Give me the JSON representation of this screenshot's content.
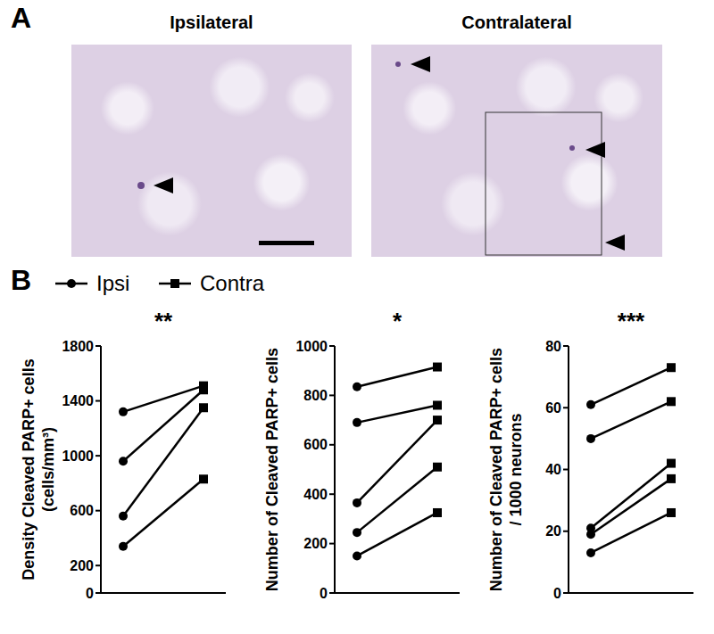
{
  "panel_labels": [
    "A",
    "B"
  ],
  "images": [
    {
      "title": "Ipsilateral"
    },
    {
      "title": "Contralateral"
    }
  ],
  "chart_data": [
    {
      "type": "line",
      "categories": [
        "Ipsi",
        "Contra"
      ],
      "legend": "top",
      "tick_labels": "y",
      "color": "#000000",
      "annotation": "**",
      "y_label": [
        "Density Cleaved PARP+ cells",
        "(cells/mm³)"
      ],
      "ylim": [
        0,
        1800
      ],
      "yticks": [
        0,
        200,
        600,
        1000,
        1400,
        1800
      ],
      "series": [
        {
          "values": [
            1320,
            1510
          ]
        },
        {
          "values": [
            960,
            1480
          ]
        },
        {
          "values": [
            560,
            1350
          ]
        },
        {
          "values": [
            340,
            830
          ]
        }
      ]
    },
    {
      "type": "line",
      "categories": [
        "Ipsi",
        "Contra"
      ],
      "tick_labels": "y",
      "color": "#000000",
      "annotation": "*",
      "y_label": [
        "Number of Cleaved PARP+ cells"
      ],
      "ylim": [
        0,
        1000
      ],
      "yticks": [
        0,
        200,
        400,
        600,
        800,
        1000
      ],
      "series": [
        {
          "values": [
            835,
            915
          ]
        },
        {
          "values": [
            690,
            760
          ]
        },
        {
          "values": [
            365,
            700
          ]
        },
        {
          "values": [
            245,
            510
          ]
        },
        {
          "values": [
            150,
            325
          ]
        }
      ]
    },
    {
      "type": "line",
      "categories": [
        "Ipsi",
        "Contra"
      ],
      "tick_labels": "y",
      "color": "#000000",
      "annotation": "***",
      "y_label": [
        "Number of Cleaved PARP+ cells",
        "/ 1000 neurons"
      ],
      "ylim": [
        0,
        80
      ],
      "yticks": [
        0,
        20,
        40,
        60,
        80
      ],
      "series": [
        {
          "values": [
            61,
            73
          ]
        },
        {
          "values": [
            50,
            62
          ]
        },
        {
          "values": [
            21,
            42
          ]
        },
        {
          "values": [
            19,
            37
          ]
        },
        {
          "values": [
            13,
            26
          ]
        }
      ]
    }
  ]
}
